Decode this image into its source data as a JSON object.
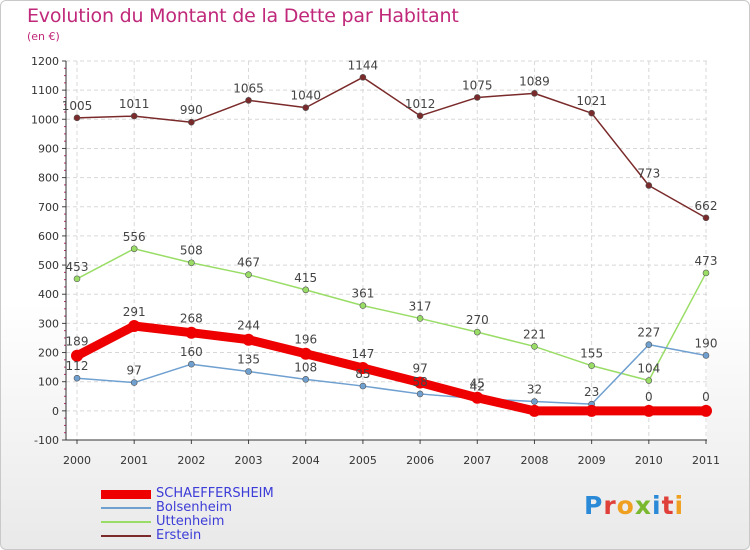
{
  "title": "Evolution du Montant de la Dette par Habitant",
  "subtitle": "(en €)",
  "logo": {
    "text": "Proxiti",
    "colors": [
      "#2a8ad8",
      "#e0403a",
      "#f0a020",
      "#7ab830",
      "#2a8ad8",
      "#e0403a",
      "#f0a020"
    ]
  },
  "chart_data": {
    "type": "line",
    "title": "Evolution du Montant de la Dette par Habitant",
    "ylabel": "(en €)",
    "xlabel": "",
    "x": [
      "2000",
      "2001",
      "2002",
      "2003",
      "2004",
      "2005",
      "2006",
      "2007",
      "2008",
      "2009",
      "2010",
      "2011"
    ],
    "ylim": [
      -100,
      1200
    ],
    "yticks": [
      -100,
      0,
      100,
      200,
      300,
      400,
      500,
      600,
      700,
      800,
      900,
      1000,
      1100,
      1200
    ],
    "grid": true,
    "legend": "bottom-left",
    "series": [
      {
        "name": "SCHAEFFERSHEIM",
        "color": "#ee0000",
        "width": 9,
        "values": [
          189,
          291,
          268,
          244,
          196,
          147,
          97,
          45,
          0,
          0,
          0,
          0
        ],
        "labels": [
          "189",
          "291",
          "268",
          "244",
          "196",
          "147",
          "97",
          "45",
          "",
          "",
          "0",
          "0"
        ]
      },
      {
        "name": "Bolsenheim",
        "color": "#6fa0d0",
        "width": 1.5,
        "values": [
          112,
          97,
          160,
          135,
          108,
          85,
          58,
          42,
          32,
          23,
          227,
          190
        ],
        "labels": [
          "112",
          "97",
          "160",
          "135",
          "108",
          "85",
          "58",
          "42",
          "32",
          "23",
          "227",
          "190"
        ]
      },
      {
        "name": "Uttenheim",
        "color": "#99dd66",
        "width": 1.5,
        "values": [
          453,
          556,
          508,
          467,
          415,
          361,
          317,
          270,
          221,
          155,
          104,
          473
        ],
        "labels": [
          "453",
          "556",
          "508",
          "467",
          "415",
          "361",
          "317",
          "270",
          "221",
          "155",
          "104",
          "473"
        ]
      },
      {
        "name": "Erstein",
        "color": "#7a2a2a",
        "width": 1.5,
        "values": [
          1005,
          1011,
          990,
          1065,
          1040,
          1144,
          1012,
          1075,
          1089,
          1021,
          773,
          662
        ],
        "labels": [
          "1005",
          "1011",
          "990",
          "1065",
          "1040",
          "1144",
          "1012",
          "1075",
          "1089",
          "1021",
          "773",
          "662"
        ]
      }
    ]
  }
}
